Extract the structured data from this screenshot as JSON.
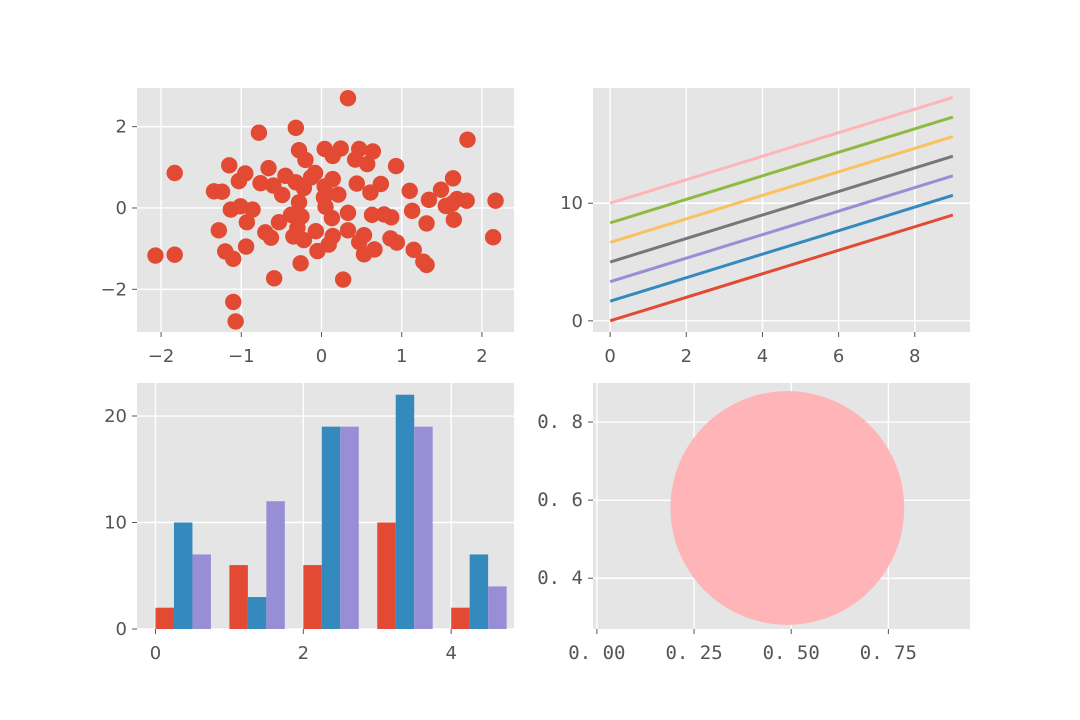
{
  "chart_data": [
    {
      "type": "scatter",
      "title": "",
      "xlabel": "",
      "ylabel": "",
      "xlim": [
        -2.3,
        2.4
      ],
      "ylim": [
        -3.05,
        2.95
      ],
      "xticks": [
        "−2",
        "−1",
        "0",
        "1",
        "2"
      ],
      "yticks": [
        "−2",
        "0",
        "2"
      ],
      "grid": true,
      "color": "#E24A33",
      "points": [
        [
          0.33,
          2.7
        ],
        [
          -0.32,
          1.97
        ],
        [
          1.82,
          1.68
        ],
        [
          -0.78,
          1.85
        ],
        [
          0.04,
          1.45
        ],
        [
          -0.28,
          1.42
        ],
        [
          0.24,
          1.46
        ],
        [
          0.47,
          1.45
        ],
        [
          0.64,
          1.39
        ],
        [
          0.14,
          1.28
        ],
        [
          0.42,
          1.19
        ],
        [
          -0.2,
          1.18
        ],
        [
          0.57,
          1.08
        ],
        [
          0.93,
          1.03
        ],
        [
          -1.15,
          1.05
        ],
        [
          -0.66,
          0.98
        ],
        [
          -1.83,
          0.86
        ],
        [
          -0.95,
          0.85
        ],
        [
          -0.08,
          0.86
        ],
        [
          -0.45,
          0.79
        ],
        [
          -0.13,
          0.75
        ],
        [
          0.14,
          0.71
        ],
        [
          1.64,
          0.73
        ],
        [
          -0.32,
          0.63
        ],
        [
          -0.76,
          0.61
        ],
        [
          -1.03,
          0.66
        ],
        [
          0.44,
          0.6
        ],
        [
          0.74,
          0.59
        ],
        [
          -0.6,
          0.55
        ],
        [
          0.04,
          0.53
        ],
        [
          -0.22,
          0.49
        ],
        [
          1.1,
          0.42
        ],
        [
          1.49,
          0.45
        ],
        [
          -1.34,
          0.41
        ],
        [
          -1.24,
          0.4
        ],
        [
          0.61,
          0.38
        ],
        [
          0.21,
          0.33
        ],
        [
          -0.49,
          0.32
        ],
        [
          0.03,
          0.26
        ],
        [
          1.69,
          0.22
        ],
        [
          1.34,
          0.2
        ],
        [
          1.81,
          0.18
        ],
        [
          2.17,
          0.18
        ],
        [
          -0.28,
          0.14
        ],
        [
          1.63,
          0.11
        ],
        [
          1.55,
          0.05
        ],
        [
          -1.01,
          0.04
        ],
        [
          0.05,
          0.03
        ],
        [
          -1.13,
          -0.04
        ],
        [
          -0.86,
          -0.04
        ],
        [
          1.13,
          -0.07
        ],
        [
          0.33,
          -0.12
        ],
        [
          0.78,
          -0.16
        ],
        [
          0.63,
          -0.17
        ],
        [
          -0.38,
          -0.17
        ],
        [
          -0.25,
          -0.21
        ],
        [
          0.87,
          -0.23
        ],
        [
          0.13,
          -0.25
        ],
        [
          1.65,
          -0.29
        ],
        [
          -0.53,
          -0.35
        ],
        [
          -0.93,
          -0.35
        ],
        [
          1.31,
          -0.38
        ],
        [
          -0.3,
          -0.49
        ],
        [
          -1.28,
          -0.55
        ],
        [
          0.33,
          -0.55
        ],
        [
          -0.07,
          -0.57
        ],
        [
          -0.7,
          -0.6
        ],
        [
          0.53,
          -0.67
        ],
        [
          0.14,
          -0.69
        ],
        [
          -0.35,
          -0.7
        ],
        [
          2.14,
          -0.72
        ],
        [
          -0.63,
          -0.73
        ],
        [
          0.86,
          -0.75
        ],
        [
          -0.22,
          -0.79
        ],
        [
          0.47,
          -0.84
        ],
        [
          0.94,
          -0.85
        ],
        [
          0.09,
          -0.9
        ],
        [
          -0.94,
          -0.95
        ],
        [
          0.66,
          -1.02
        ],
        [
          1.15,
          -1.03
        ],
        [
          -1.2,
          -1.07
        ],
        [
          -0.05,
          -1.06
        ],
        [
          0.53,
          -1.14
        ],
        [
          -2.07,
          -1.17
        ],
        [
          -1.83,
          -1.15
        ],
        [
          -1.1,
          -1.25
        ],
        [
          1.27,
          -1.32
        ],
        [
          -0.26,
          -1.36
        ],
        [
          1.31,
          -1.4
        ],
        [
          -0.59,
          -1.73
        ],
        [
          0.27,
          -1.76
        ],
        [
          -1.1,
          -2.31
        ],
        [
          -1.07,
          -2.79
        ]
      ]
    },
    {
      "type": "line",
      "title": "",
      "xlabel": "",
      "ylabel": "",
      "xlim": [
        -0.45,
        9.45
      ],
      "ylim": [
        -0.95,
        19.8
      ],
      "xticks": [
        "0",
        "2",
        "4",
        "6",
        "8"
      ],
      "yticks": [
        "0",
        "10"
      ],
      "grid": true,
      "x": [
        0,
        9
      ],
      "series": [
        {
          "color": "#E24A33",
          "values": [
            0,
            9
          ]
        },
        {
          "color": "#348ABD",
          "values": [
            1.67,
            10.67
          ]
        },
        {
          "color": "#988ED5",
          "values": [
            3.33,
            12.33
          ]
        },
        {
          "color": "#777777",
          "values": [
            5,
            14
          ]
        },
        {
          "color": "#FBC15E",
          "values": [
            6.67,
            15.67
          ]
        },
        {
          "color": "#8EBA42",
          "values": [
            8.33,
            17.33
          ]
        },
        {
          "color": "#FFB5B8",
          "values": [
            10,
            19
          ]
        }
      ]
    },
    {
      "type": "bar",
      "title": "",
      "xlabel": "",
      "ylabel": "",
      "xlim": [
        -0.25,
        4.85
      ],
      "ylim": [
        0,
        23.1
      ],
      "xticks": [
        "0",
        "2",
        "4"
      ],
      "yticks": [
        "0",
        "10",
        "20"
      ],
      "grid": true,
      "categories": [
        0,
        1,
        2,
        3,
        4
      ],
      "series": [
        {
          "color": "#E24A33",
          "values": [
            2,
            6,
            6,
            10,
            2
          ]
        },
        {
          "color": "#348ABD",
          "values": [
            10,
            3,
            19,
            22,
            7
          ]
        },
        {
          "color": "#988ED5",
          "values": [
            7,
            12,
            19,
            19,
            4
          ]
        }
      ]
    },
    {
      "type": "pie",
      "title": "",
      "xlabel": "",
      "ylabel": "",
      "xlim": [
        -0.01,
        0.96
      ],
      "ylim": [
        0.27,
        0.9
      ],
      "xticks": [
        "0. 00",
        "0. 25",
        "0. 50",
        "0. 75"
      ],
      "yticks": [
        "0. 4",
        "0. 6",
        "0. 8"
      ],
      "grid": true,
      "shape": "circle",
      "center": [
        0.49,
        0.58
      ],
      "radius": 0.3,
      "color": "#FFB5B8"
    }
  ]
}
